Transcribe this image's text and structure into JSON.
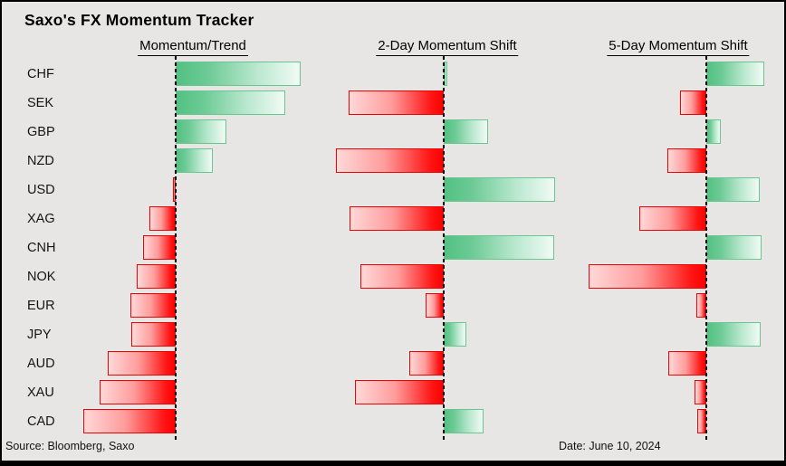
{
  "title": "Saxo's FX Momentum Tracker",
  "footer": {
    "source": "Source: Bloomberg, Saxo",
    "date": "Date: June 10, 2024"
  },
  "colors": {
    "positive_solid": "#53c182",
    "positive_fade": "#f1faf5",
    "negative_solid": "#ff0000",
    "negative_fade": "#ffd8d8",
    "background": "#e7e6e4",
    "baseline": "#000000"
  },
  "chart_data": {
    "type": "bar",
    "orientation": "horizontal",
    "title": "Saxo's FX Momentum Tracker",
    "categories": [
      "CHF",
      "SEK",
      "GBP",
      "NZD",
      "USD",
      "XAG",
      "CNH",
      "NOK",
      "EUR",
      "JPY",
      "AUD",
      "XAU",
      "CAD"
    ],
    "value_note": "No numeric axis shown; values are signed bar lengths estimated in screen pixels from each panel's zero baseline",
    "legend_position": "none",
    "grid": false,
    "series": [
      {
        "name": "Momentum/Trend",
        "values": [
          138,
          121,
          56,
          41,
          -3,
          -29,
          -36,
          -43,
          -50,
          -49,
          -75,
          -84,
          -102
        ]
      },
      {
        "name": "2-Day Momentum Shift",
        "values": [
          4,
          -105,
          49,
          -119,
          123,
          -104,
          122,
          -92,
          -20,
          25,
          -38,
          -98,
          44
        ]
      },
      {
        "name": "5-Day Momentum Shift",
        "values": [
          64,
          -29,
          16,
          -43,
          59,
          -74,
          61,
          -130,
          -11,
          60,
          -42,
          -13,
          -10
        ]
      }
    ]
  }
}
